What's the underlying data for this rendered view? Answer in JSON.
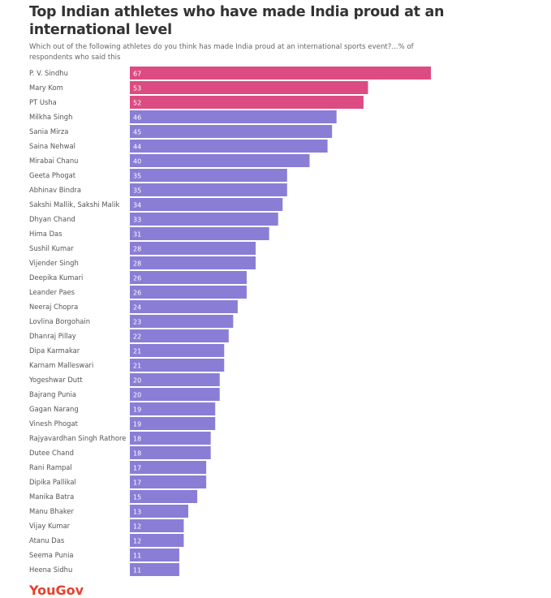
{
  "chart_data": {
    "type": "bar",
    "orientation": "horizontal",
    "title": "Top Indian athletes who have made India proud at an international level",
    "subtitle": "Which out of the following athletes do you think has made India proud at an international sports event?...% of respondents who said this",
    "categories": [
      "P. V. Sindhu",
      "Mary Kom",
      "PT Usha",
      "Milkha Singh",
      "Sania Mirza",
      "Saina Nehwal",
      "Mirabai Chanu",
      "Geeta Phogat",
      "Abhinav Bindra",
      "Sakshi Mallik, Sakshi Malik",
      "Dhyan Chand",
      "Hima Das",
      "Sushil Kumar",
      "Vijender Singh",
      "Deepika Kumari",
      "Leander Paes",
      "Neeraj Chopra",
      "Lovlina Borgohain",
      "Dhanraj Pillay",
      "Dipa Karmakar",
      "Karnam Malleswari",
      "Yogeshwar Dutt",
      "Bajrang Punia",
      "Gagan Narang",
      "Vinesh Phogat",
      "Rajyavardhan Singh Rathore",
      "Dutee Chand",
      "Rani Rampal",
      "Dipika Pallikal",
      "Manika Batra",
      "Manu Bhaker",
      "Vijay Kumar",
      "Atanu Das",
      "Seema Punia",
      "Heena Sidhu"
    ],
    "values": [
      67,
      53,
      52,
      46,
      45,
      44,
      40,
      35,
      35,
      34,
      33,
      31,
      28,
      28,
      26,
      26,
      24,
      23,
      22,
      21,
      21,
      20,
      20,
      19,
      19,
      18,
      18,
      17,
      17,
      15,
      13,
      12,
      12,
      11,
      11
    ],
    "highlight_count": 3,
    "colors": {
      "highlight": "#dc4b82",
      "default": "#8a7dd6"
    },
    "xlim": [
      0,
      67
    ],
    "grid": false,
    "data_labels": true
  },
  "logo": "YouGov"
}
